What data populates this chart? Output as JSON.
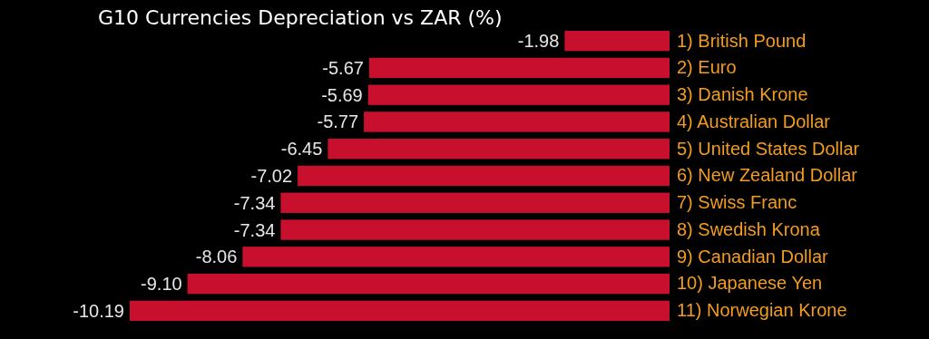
{
  "chart_data": {
    "type": "bar",
    "orientation": "horizontal",
    "title": "G10 Currencies Depreciation vs ZAR (%)",
    "categories": [
      "1) British Pound",
      "2) Euro",
      "3) Danish Krone",
      "4) Australian Dollar",
      "5) United States Dollar",
      "6) New Zealand Dollar",
      "7) Swiss Franc",
      "8) Swedish Krona",
      "9) Canadian Dollar",
      "10) Japanese Yen",
      "11) Norwegian Krone"
    ],
    "values": [
      -1.98,
      -5.67,
      -5.69,
      -5.77,
      -6.45,
      -7.02,
      -7.34,
      -7.34,
      -8.06,
      -9.1,
      -10.19
    ],
    "value_labels": [
      "-1.98",
      "-5.67",
      "-5.69",
      "-5.77",
      "-6.45",
      "-7.02",
      "-7.34",
      "-7.34",
      "-8.06",
      "-9.10",
      "-10.19"
    ],
    "color": "#c8102e",
    "tick_labels": "y",
    "grid": false
  }
}
